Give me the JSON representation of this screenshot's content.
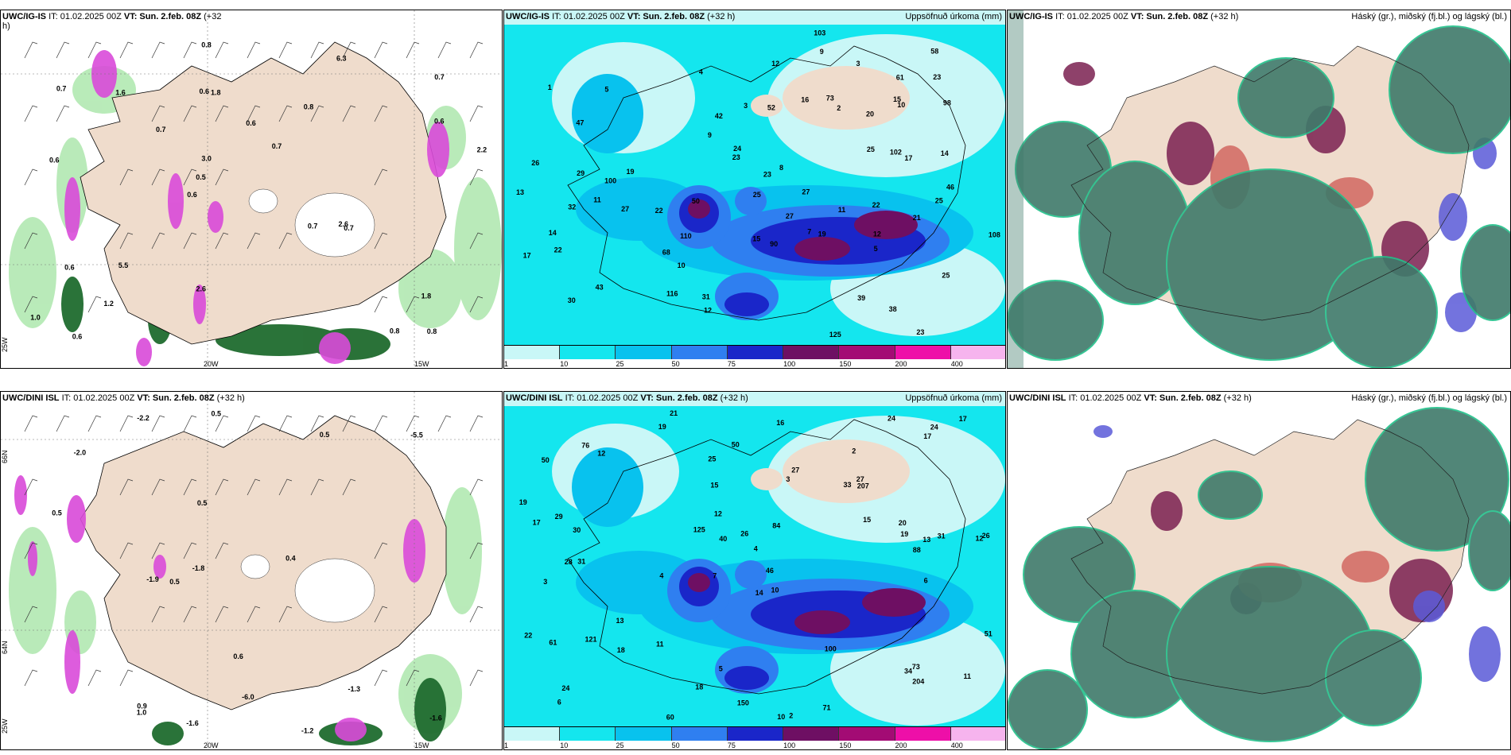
{
  "panels": {
    "p1": {
      "model": "UWC/IG-IS",
      "it": "IT: 01.02.2025 00Z",
      "vt": "VT: Sun. 2.feb. 08Z",
      "lead": "(+32",
      "lead2": "h)",
      "right": ""
    },
    "p2": {
      "model": "UWC/IG-IS",
      "it": "IT: 01.02.2025 00Z",
      "vt": "VT: Sun. 2.feb. 08Z",
      "lead": "(+32 h)",
      "right": "Uppsöfnuð úrkoma (mm)"
    },
    "p3": {
      "model": "UWC/IG-IS",
      "it": "IT: 01.02.2025 00Z",
      "vt": "VT: Sun. 2.feb. 08Z",
      "lead": "(+32 h)",
      "right": "Háský (gr.), miðský (fj.bl.) og lágský (bl.)"
    },
    "p4": {
      "model": "UWC/DINI ISL",
      "it": "IT: 01.02.2025 00Z",
      "vt": "VT: Sun. 2.feb. 08Z",
      "lead": "(+32 h)",
      "right": ""
    },
    "p5": {
      "model": "UWC/DINI ISL",
      "it": "IT: 01.02.2025 00Z",
      "vt": "VT: Sun. 2.feb. 08Z",
      "lead": "(+32 h)",
      "right": "Uppsöfnuð úrkoma (mm)"
    },
    "p6": {
      "model": "UWC/DINI ISL",
      "it": "IT: 01.02.2025 00Z",
      "vt": "VT: Sun. 2.feb. 08Z",
      "lead": "(+32 h)",
      "right": "Háský (gr.), miðský (fj.bl.) og lágský (bl.)"
    }
  },
  "axes": {
    "lon1": "20W",
    "lon2": "15W",
    "lon3": "25W",
    "lat1": "66N",
    "lat2": "64N"
  },
  "colorbar": {
    "colors": [
      "#c9f7f7",
      "#14e6ee",
      "#08c2ee",
      "#2f7ff0",
      "#1a26c9",
      "#6e0f63",
      "#a30b74",
      "#ee0fa8",
      "#f6b4ee"
    ],
    "ticks": [
      "1",
      "10",
      "25",
      "50",
      "75",
      "100",
      "150",
      "200",
      "400"
    ]
  },
  "wind_labels_top": [
    "0.8",
    "0.6",
    "0.7",
    "0.6",
    "0.8",
    "0.6",
    "0.6",
    "0.6",
    "0.6",
    "0.7",
    "1.0",
    "1.2",
    "1.8",
    "0.7",
    "0.7",
    "0.7",
    "0.8",
    "2.2",
    "0.7",
    "0.6",
    "0.5",
    "2.6",
    "3.0",
    "1.6",
    "6.3",
    "5.5",
    "0.8",
    "1.8",
    "2.6"
  ],
  "wind_labels_bottom": [
    "-1.6",
    "-1.2",
    "0.9",
    "-1.3",
    "-2.2",
    "-2.0",
    "-1.9",
    "-1.6",
    "0.5",
    "0.5",
    "-5.5",
    "-6.0",
    "-1.8",
    "0.6",
    "0.5",
    "0.4",
    "0.5",
    "1.0",
    "0.5"
  ],
  "precip_top": [
    "23",
    "11",
    "7",
    "1",
    "25",
    "47",
    "43",
    "22",
    "20",
    "3",
    "2",
    "38",
    "10",
    "4",
    "27",
    "22",
    "22",
    "23",
    "26",
    "30",
    "58",
    "52",
    "102",
    "108",
    "46",
    "29",
    "27",
    "25",
    "23",
    "23",
    "19",
    "32",
    "68",
    "73",
    "42",
    "21",
    "25",
    "39",
    "61",
    "125",
    "110",
    "90",
    "116",
    "103",
    "50",
    "100",
    "98",
    "9",
    "16",
    "15",
    "11",
    "14",
    "12",
    "17",
    "9",
    "13",
    "12",
    "24",
    "27",
    "25",
    "31",
    "15",
    "5",
    "12",
    "17",
    "14",
    "19",
    "8",
    "3",
    "10",
    "5"
  ],
  "precip_bottom": [
    "21",
    "2",
    "12",
    "7",
    "10",
    "31",
    "50",
    "33",
    "3",
    "3",
    "4",
    "6",
    "19",
    "4",
    "10",
    "2",
    "5",
    "24",
    "15",
    "13",
    "30",
    "28",
    "26",
    "31",
    "22",
    "29",
    "40",
    "19",
    "73",
    "61",
    "34",
    "27",
    "121",
    "125",
    "100",
    "51",
    "20",
    "18",
    "17",
    "50",
    "24",
    "60",
    "71",
    "76",
    "150",
    "207",
    "204",
    "27",
    "19",
    "46",
    "25",
    "88",
    "84",
    "17",
    "16",
    "18",
    "12",
    "26",
    "24",
    "15",
    "11",
    "6",
    "12",
    "11",
    "14",
    "17",
    "13"
  ]
}
